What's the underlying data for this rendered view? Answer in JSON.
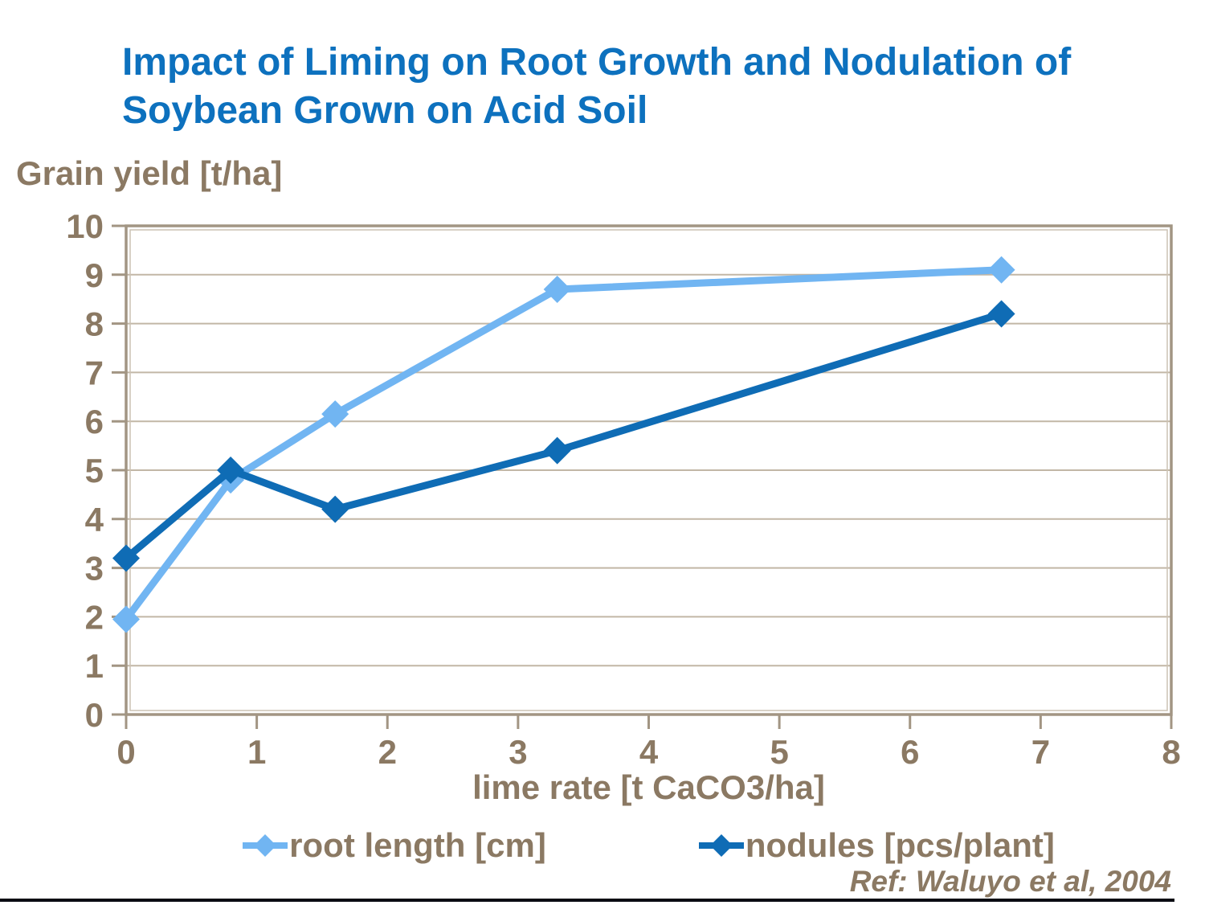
{
  "slide": {
    "title_lines": [
      "Impact of Liming on Root Growth and Nodulation of",
      "Soybean Grown on Acid Soil"
    ],
    "reference": "Ref: Waluyo et al, 2004"
  },
  "colors": {
    "title": "#0D71BE",
    "axis_text": "#8B7963",
    "plot_border": "#A29583",
    "plot_border_inner": "#CCC2B4",
    "gridline": "#C2B7A6",
    "footer_bar": "#0A0B12",
    "series_root_length": "#71B5F2",
    "series_nodules": "#0F6CB5"
  },
  "chart_data": {
    "type": "line",
    "x": [
      0,
      0.8,
      1.6,
      3.3,
      6.7
    ],
    "series": [
      {
        "name": "root length [cm]",
        "color": "#71B5F2",
        "values": [
          1.95,
          4.8,
          6.15,
          8.7,
          9.1
        ]
      },
      {
        "name": "nodules [pcs/plant]",
        "color": "#0F6CB5",
        "values": [
          3.2,
          5.0,
          4.2,
          5.4,
          8.2
        ]
      }
    ],
    "title": "Impact of Liming on Root Growth and Nodulation of Soybean Grown on Acid Soil",
    "xlabel": "lime rate [t CaCO3/ha]",
    "ylabel": "Grain yield [t/ha]",
    "xlim": [
      0,
      8
    ],
    "ylim": [
      0,
      10
    ],
    "x_ticks": [
      0,
      1,
      2,
      3,
      4,
      5,
      6,
      7,
      8
    ],
    "y_ticks": [
      0,
      1,
      2,
      3,
      4,
      5,
      6,
      7,
      8,
      9,
      10
    ],
    "grid": "horizontal-only",
    "legend_position": "bottom",
    "marker": "diamond"
  }
}
